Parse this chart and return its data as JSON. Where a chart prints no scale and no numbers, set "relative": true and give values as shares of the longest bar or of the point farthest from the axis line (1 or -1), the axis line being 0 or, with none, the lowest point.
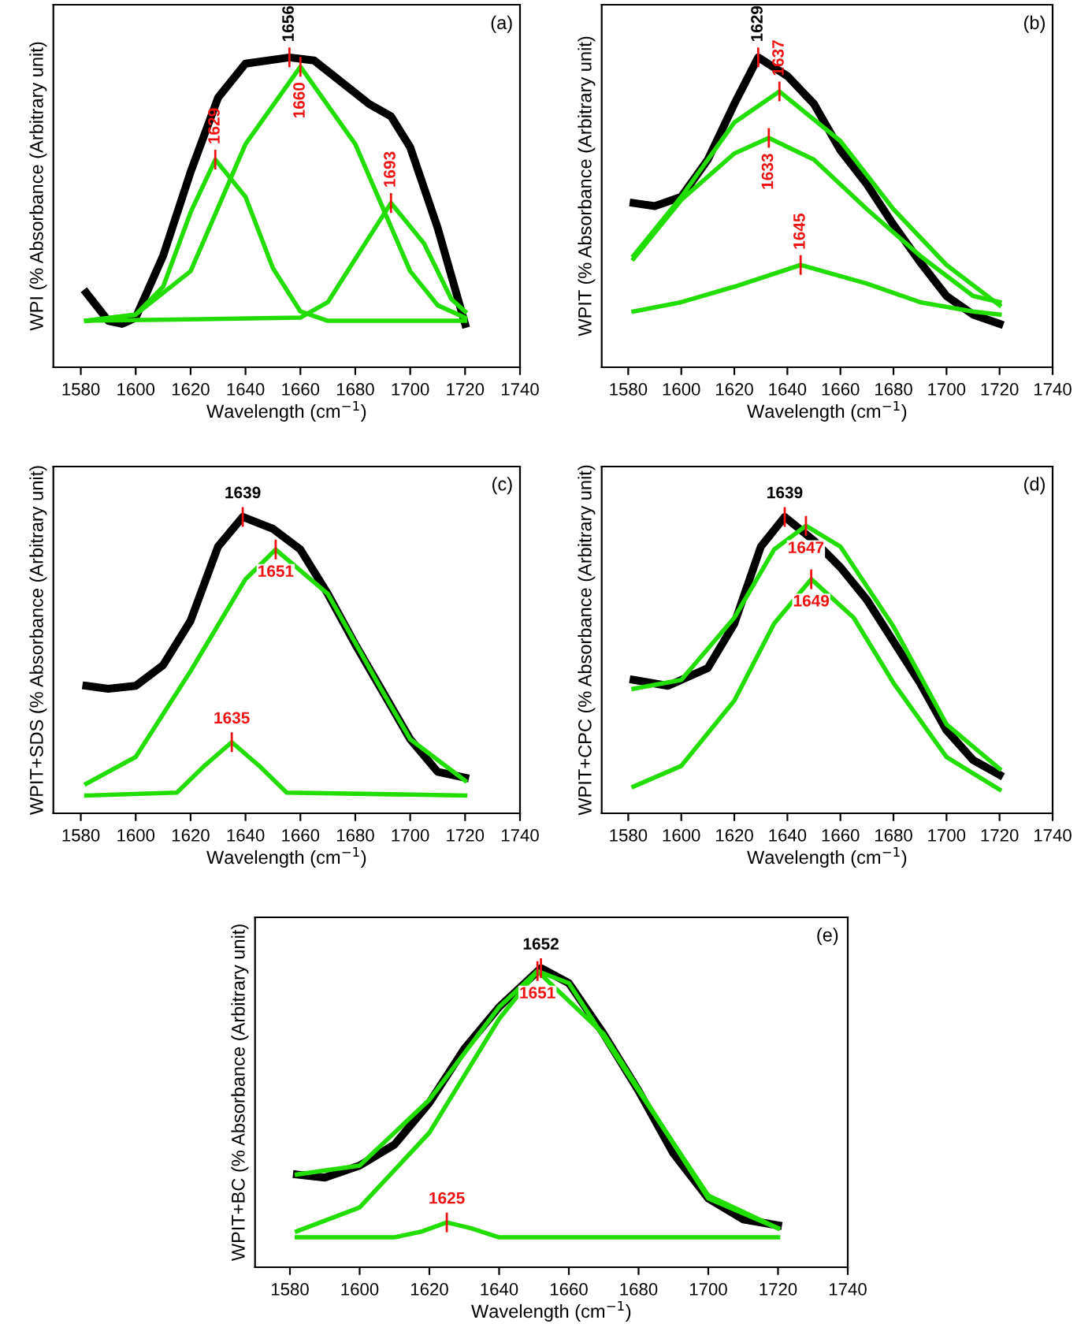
{
  "chart_data": [
    {
      "type": "line",
      "title": "(a)",
      "xlabel": "Wavelength (cm$^{−1}$)",
      "ylabel": "WPI (% Absorbance (Arbitrary unit)",
      "relative": true,
      "tick_labels": "x",
      "xlim": [
        1570,
        1740
      ],
      "xticks": [
        1580,
        1600,
        1620,
        1640,
        1660,
        1680,
        1700,
        1720,
        1740
      ],
      "series": [
        {
          "color": "#000000",
          "x": [
            1582,
            1590,
            1595,
            1600,
            1610,
            1620,
            1630,
            1640,
            1656,
            1665,
            1675,
            1685,
            1693,
            1700,
            1710,
            1720
          ],
          "values": [
            0.24,
            0.15,
            0.14,
            0.16,
            0.36,
            0.63,
            0.87,
            0.98,
            1.0,
            0.99,
            0.92,
            0.85,
            0.81,
            0.71,
            0.45,
            0.14
          ]
        },
        {
          "color": "#22dd00",
          "x": [
            1582,
            1600,
            1610,
            1620,
            1629,
            1640,
            1650,
            1660,
            1670,
            1720
          ],
          "values": [
            0.15,
            0.17,
            0.26,
            0.5,
            0.67,
            0.55,
            0.32,
            0.18,
            0.15,
            0.15
          ]
        },
        {
          "color": "#22dd00",
          "x": [
            1582,
            1600,
            1620,
            1640,
            1660,
            1680,
            1700,
            1710,
            1720
          ],
          "values": [
            0.15,
            0.17,
            0.31,
            0.72,
            0.97,
            0.72,
            0.31,
            0.2,
            0.16
          ]
        },
        {
          "color": "#22dd00",
          "x": [
            1582,
            1660,
            1670,
            1680,
            1693,
            1705,
            1715,
            1720
          ],
          "values": [
            0.15,
            0.16,
            0.21,
            0.35,
            0.53,
            0.4,
            0.22,
            0.18
          ]
        }
      ],
      "annotations": [
        {
          "text": "1656",
          "x": 1656,
          "y": 1.0
        },
        {
          "text": "1660",
          "x": 1660,
          "y": 0.97
        },
        {
          "text": "1629",
          "x": 1629,
          "y": 0.67
        },
        {
          "text": "1693",
          "x": 1693,
          "y": 0.53
        }
      ]
    },
    {
      "type": "line",
      "title": "(b)",
      "xlabel": "Wavelength (cm$^{−1}$)",
      "ylabel": "WPIT (% Absorbance (Arbitrary unit)",
      "relative": true,
      "tick_labels": "x",
      "xlim": [
        1570,
        1740
      ],
      "xticks": [
        1580,
        1600,
        1620,
        1640,
        1660,
        1680,
        1700,
        1720,
        1740
      ],
      "series": [
        {
          "color": "#000000",
          "x": [
            1582,
            1590,
            1600,
            1610,
            1620,
            1629,
            1640,
            1650,
            1660,
            1670,
            1680,
            1690,
            1700,
            1710,
            1720
          ],
          "values": [
            0.53,
            0.52,
            0.55,
            0.67,
            0.85,
            1.0,
            0.94,
            0.85,
            0.7,
            0.59,
            0.46,
            0.34,
            0.23,
            0.17,
            0.14
          ]
        },
        {
          "color": "#22dd00",
          "x": [
            1582,
            1600,
            1620,
            1637,
            1660,
            1680,
            1700,
            1720
          ],
          "values": [
            0.36,
            0.55,
            0.79,
            0.89,
            0.73,
            0.51,
            0.33,
            0.2
          ]
        },
        {
          "color": "#22dd00",
          "x": [
            1582,
            1600,
            1620,
            1633,
            1650,
            1670,
            1690,
            1710,
            1720
          ],
          "values": [
            0.35,
            0.54,
            0.69,
            0.74,
            0.67,
            0.51,
            0.36,
            0.23,
            0.21
          ]
        },
        {
          "color": "#22dd00",
          "x": [
            1582,
            1600,
            1620,
            1645,
            1670,
            1690,
            1710,
            1720
          ],
          "values": [
            0.18,
            0.21,
            0.26,
            0.33,
            0.27,
            0.21,
            0.18,
            0.17
          ]
        }
      ],
      "annotations": [
        {
          "text": "1629",
          "x": 1629,
          "y": 1.0
        },
        {
          "text": "1637",
          "x": 1637,
          "y": 0.89
        },
        {
          "text": "1633",
          "x": 1633,
          "y": 0.74
        },
        {
          "text": "1645",
          "x": 1645,
          "y": 0.33
        }
      ]
    },
    {
      "type": "line",
      "title": "(c)",
      "xlabel": "Wavelength (cm$^{−1}$)",
      "ylabel": "WPIT+SDS (% Absorbance (Arbitrary unit)",
      "relative": true,
      "tick_labels": "x",
      "xlim": [
        1570,
        1740
      ],
      "xticks": [
        1580,
        1600,
        1620,
        1640,
        1660,
        1680,
        1700,
        1720,
        1740
      ],
      "series": [
        {
          "color": "#000000",
          "x": [
            1582,
            1590,
            1600,
            1610,
            1620,
            1630,
            1639,
            1650,
            1660,
            1670,
            1680,
            1690,
            1700,
            1710,
            1720
          ],
          "values": [
            0.43,
            0.42,
            0.43,
            0.5,
            0.65,
            0.9,
            1.0,
            0.96,
            0.89,
            0.74,
            0.57,
            0.41,
            0.25,
            0.14,
            0.12
          ]
        },
        {
          "color": "#22dd00",
          "x": [
            1582,
            1600,
            1620,
            1640,
            1651,
            1670,
            1690,
            1700,
            1720
          ],
          "values": [
            0.1,
            0.19,
            0.48,
            0.79,
            0.89,
            0.74,
            0.41,
            0.25,
            0.11
          ]
        },
        {
          "color": "#22dd00",
          "x": [
            1582,
            1615,
            1625,
            1635,
            1645,
            1655,
            1720
          ],
          "values": [
            0.06,
            0.07,
            0.16,
            0.24,
            0.16,
            0.07,
            0.06
          ]
        }
      ],
      "annotations": [
        {
          "text": "1639",
          "x": 1639,
          "y": 1.0
        },
        {
          "text": "1651",
          "x": 1651,
          "y": 0.89
        },
        {
          "text": "1635",
          "x": 1635,
          "y": 0.24
        }
      ]
    },
    {
      "type": "line",
      "title": "(d)",
      "xlabel": "Wavelength (cm$^{−1}$)",
      "ylabel": "WPIT+CPC (% Absorbance (Arbitrary unit)",
      "relative": true,
      "tick_labels": "x",
      "xlim": [
        1570,
        1740
      ],
      "xticks": [
        1580,
        1600,
        1620,
        1640,
        1660,
        1680,
        1700,
        1720,
        1740
      ],
      "series": [
        {
          "color": "#000000",
          "x": [
            1582,
            1595,
            1610,
            1620,
            1630,
            1639,
            1650,
            1660,
            1670,
            1680,
            1690,
            1700,
            1710,
            1720
          ],
          "values": [
            0.45,
            0.43,
            0.49,
            0.64,
            0.9,
            1.0,
            0.92,
            0.83,
            0.72,
            0.58,
            0.44,
            0.28,
            0.18,
            0.13
          ]
        },
        {
          "color": "#22dd00",
          "x": [
            1582,
            1600,
            1620,
            1635,
            1647,
            1660,
            1680,
            1700,
            1720
          ],
          "values": [
            0.42,
            0.45,
            0.66,
            0.89,
            0.97,
            0.9,
            0.63,
            0.3,
            0.15
          ]
        },
        {
          "color": "#22dd00",
          "x": [
            1582,
            1600,
            1620,
            1635,
            1649,
            1665,
            1680,
            1700,
            1720
          ],
          "values": [
            0.09,
            0.16,
            0.38,
            0.64,
            0.79,
            0.66,
            0.44,
            0.19,
            0.08
          ]
        }
      ],
      "annotations": [
        {
          "text": "1639",
          "x": 1639,
          "y": 1.0
        },
        {
          "text": "1647",
          "x": 1647,
          "y": 0.97
        },
        {
          "text": "1649",
          "x": 1649,
          "y": 0.79
        }
      ]
    },
    {
      "type": "line",
      "title": "(e)",
      "xlabel": "Wavelength (cm$^{−1}$)",
      "ylabel": "WPIT+BC (% Absorbance (Arbitrary unit)",
      "relative": true,
      "tick_labels": "x",
      "xlim": [
        1570,
        1740
      ],
      "xticks": [
        1580,
        1600,
        1620,
        1640,
        1660,
        1680,
        1700,
        1720,
        1740
      ],
      "series": [
        {
          "color": "#000000",
          "x": [
            1582,
            1590,
            1600,
            1610,
            1620,
            1630,
            1640,
            1652,
            1660,
            1670,
            1680,
            1690,
            1700,
            1710,
            1720
          ],
          "values": [
            0.31,
            0.3,
            0.34,
            0.41,
            0.55,
            0.73,
            0.87,
            1.0,
            0.95,
            0.78,
            0.59,
            0.38,
            0.23,
            0.16,
            0.14
          ]
        },
        {
          "color": "#22dd00",
          "x": [
            1582,
            1600,
            1620,
            1640,
            1651,
            1670,
            1700,
            1720
          ],
          "values": [
            0.31,
            0.34,
            0.56,
            0.87,
            0.99,
            0.78,
            0.23,
            0.13
          ]
        },
        {
          "color": "#22dd00",
          "x": [
            1582,
            1600,
            1620,
            1630,
            1640,
            1651,
            1660,
            1680,
            1700,
            1720
          ],
          "values": [
            0.12,
            0.2,
            0.45,
            0.64,
            0.83,
            0.99,
            0.95,
            0.59,
            0.24,
            0.13
          ]
        },
        {
          "color": "#22dd00",
          "x": [
            1582,
            1610,
            1618,
            1625,
            1632,
            1640,
            1720
          ],
          "values": [
            0.1,
            0.1,
            0.12,
            0.15,
            0.13,
            0.1,
            0.1
          ]
        }
      ],
      "annotations": [
        {
          "text": "1652",
          "x": 1652,
          "y": 1.0
        },
        {
          "text": "1651",
          "x": 1651,
          "y": 0.99
        },
        {
          "text": "1625",
          "x": 1625,
          "y": 0.15
        }
      ]
    }
  ]
}
